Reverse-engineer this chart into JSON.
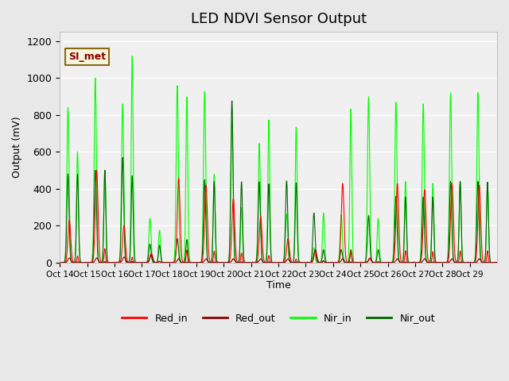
{
  "title": "LED NDVI Sensor Output",
  "xlabel": "Time",
  "ylabel": "Output (mV)",
  "ylim": [
    0,
    1250
  ],
  "background_color": "#e8e8e8",
  "plot_bg_color": "#f0f0f0",
  "legend_labels": [
    "Red_in",
    "Red_out",
    "Nir_in",
    "Nir_out"
  ],
  "legend_colors": [
    "#ff0000",
    "#8b0000",
    "#00ff00",
    "#006400"
  ],
  "annotation_text": "SI_met",
  "annotation_color": "#8b0000",
  "annotation_bg": "#f5f5dc",
  "annotation_border": "#8b6914",
  "x_tick_labels": [
    "Oct 14",
    "Oct 15",
    "Oct 16",
    "Oct 17",
    "Oct 18",
    "Oct 19",
    "Oct 20",
    "Oct 21",
    "Oct 22",
    "Oct 23",
    "Oct 24",
    "Oct 25",
    "Oct 26",
    "Oct 27",
    "Oct 28",
    "Oct 29"
  ],
  "num_days": 16,
  "red_in_peaks": [
    230,
    500,
    200,
    50,
    460,
    420,
    350,
    250,
    130,
    60,
    430,
    25,
    430,
    395,
    430,
    420
  ],
  "red_out_peaks": [
    25,
    25,
    30,
    40,
    20,
    20,
    20,
    20,
    20,
    70,
    20,
    20,
    20,
    20,
    20,
    20
  ],
  "nir_in_peaks": [
    840,
    1000,
    860,
    240,
    960,
    930,
    775,
    650,
    265,
    80,
    260,
    900,
    870,
    860,
    920,
    920
  ],
  "nir_out_peaks": [
    480,
    500,
    570,
    100,
    130,
    450,
    880,
    440,
    445,
    270,
    70,
    255,
    360,
    355,
    440,
    440
  ],
  "nir_in_peaks2": [
    600,
    500,
    1120,
    175,
    900,
    480,
    300,
    780,
    740,
    270,
    835,
    240,
    440,
    430,
    440,
    435
  ],
  "nir_out_peaks2": [
    480,
    500,
    470,
    95,
    125,
    440,
    440,
    430,
    435,
    70,
    70,
    70,
    355,
    355,
    440,
    435
  ]
}
